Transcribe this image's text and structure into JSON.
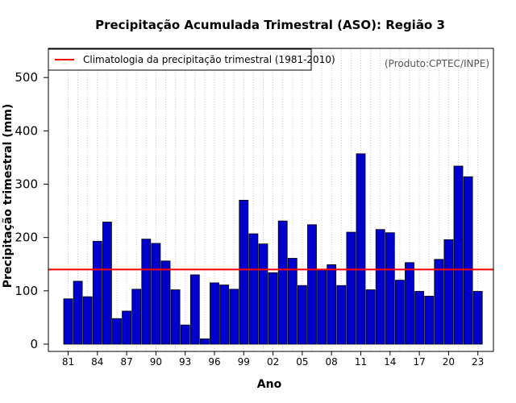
{
  "chart_data": {
    "type": "bar",
    "title": "Precipitação Acumulada Trimestral (ASO): Região 3",
    "xlabel": "Ano",
    "ylabel": "Precipitação trimestral (mm)",
    "credit": "(Produto:CPTEC/INPE)",
    "ylim": [
      0,
      560
    ],
    "y_ticks": [
      0,
      100,
      200,
      300,
      400,
      500
    ],
    "x_tick_labels": [
      "81",
      "84",
      "87",
      "90",
      "93",
      "96",
      "99",
      "02",
      "05",
      "08",
      "11",
      "14",
      "17",
      "20",
      "23"
    ],
    "categories": [
      "1981",
      "1982",
      "1983",
      "1984",
      "1985",
      "1986",
      "1987",
      "1988",
      "1989",
      "1990",
      "1991",
      "1992",
      "1993",
      "1994",
      "1995",
      "1996",
      "1997",
      "1998",
      "1999",
      "2000",
      "2001",
      "2002",
      "2003",
      "2004",
      "2005",
      "2006",
      "2007",
      "2008",
      "2009",
      "2010",
      "2011",
      "2012",
      "2013",
      "2014",
      "2015",
      "2016",
      "2017",
      "2018",
      "2019",
      "2020",
      "2021",
      "2022",
      "2023"
    ],
    "values": [
      85,
      118,
      89,
      193,
      229,
      48,
      62,
      103,
      197,
      189,
      156,
      102,
      36,
      130,
      10,
      115,
      111,
      103,
      270,
      207,
      188,
      134,
      231,
      161,
      110,
      224,
      140,
      149,
      110,
      210,
      357,
      102,
      215,
      209,
      120,
      153,
      99,
      90,
      159,
      196,
      334,
      314,
      99
    ],
    "bar_color": "#0000cd",
    "climatology": {
      "label": "Climatologia da precipitação trimestral (1981-2010)",
      "value": 140,
      "color": "#ff0000"
    },
    "grid": "vertical-dotted",
    "legend_position": "top-left"
  }
}
